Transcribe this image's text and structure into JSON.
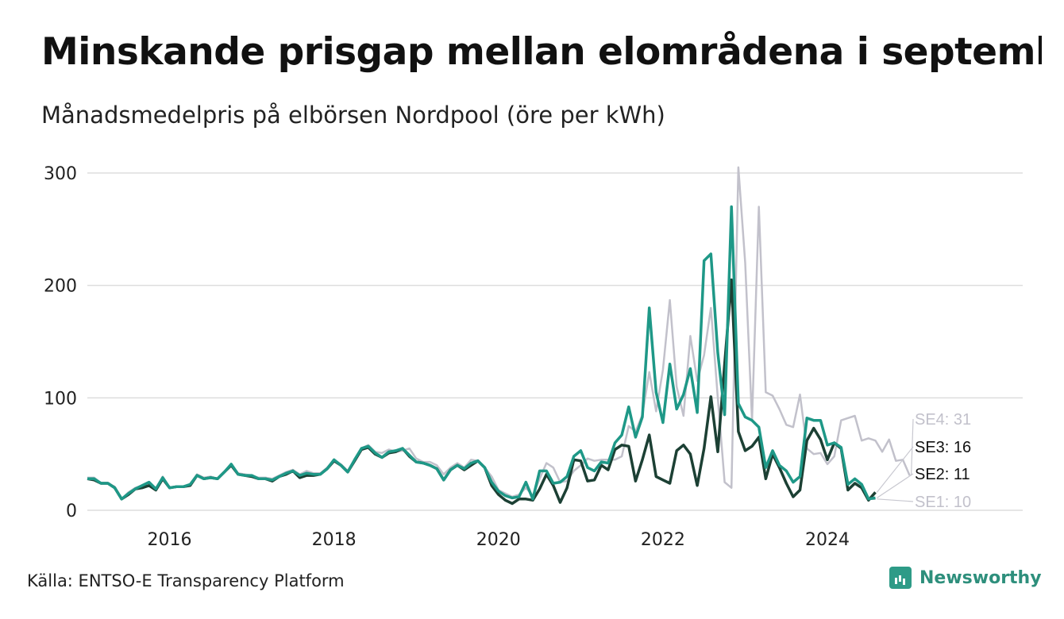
{
  "header": {
    "title": "Minskande prisgap mellan elområdena i  september",
    "subtitle": "Månadsmedelpris på elbörsen Nordpool (öre per kWh)"
  },
  "footer": {
    "source": "Källa: ENTSO-E Transparency Platform",
    "brand": "Newsworthy"
  },
  "chart_data": {
    "type": "line",
    "title": "Minskande prisgap mellan elområdena i  september",
    "subtitle": "Månadsmedelpris på elbörsen Nordpool (öre per kWh)",
    "x_unit": "monthly, starting 2015-01",
    "x_ticks": [
      "2016",
      "2018",
      "2020",
      "2022",
      "2024"
    ],
    "y_ticks": [
      0,
      100,
      200,
      300
    ],
    "ylim": [
      0,
      300
    ],
    "grid": true,
    "legend": "end-labels",
    "colors": {
      "SE4": "#c2c1cb",
      "SE3": "#1c4034",
      "SE2": "#1e9887",
      "SE1": "#c2c1cb"
    },
    "end_labels": [
      "SE4: 31",
      "SE3: 16",
      "SE2: 11",
      "SE1: 10"
    ],
    "series": [
      {
        "name": "SE4",
        "values": [
          29,
          29,
          24,
          24,
          21,
          10,
          16,
          20,
          22,
          25,
          19,
          30,
          20,
          21,
          21,
          23,
          32,
          29,
          30,
          28,
          34,
          41,
          33,
          32,
          31,
          29,
          29,
          28,
          31,
          34,
          36,
          32,
          35,
          33,
          33,
          38,
          45,
          41,
          35,
          45,
          55,
          58,
          52,
          51,
          54,
          52,
          53,
          55,
          46,
          43,
          43,
          40,
          32,
          38,
          42,
          38,
          45,
          44,
          38,
          30,
          18,
          15,
          12,
          14,
          20,
          13,
          28,
          42,
          38,
          25,
          26,
          35,
          40,
          46,
          44,
          45,
          45,
          45,
          48,
          75,
          70,
          85,
          123,
          88,
          125,
          187,
          110,
          84,
          155,
          115,
          138,
          180,
          100,
          25,
          20,
          305,
          220,
          80,
          270,
          105,
          102,
          90,
          76,
          74,
          103,
          55,
          50,
          51,
          41,
          48,
          80,
          82,
          84,
          62,
          64,
          62,
          52,
          63,
          44,
          45,
          31
        ]
      },
      {
        "name": "SE3",
        "values": [
          28,
          27,
          24,
          24,
          20,
          10,
          14,
          19,
          20,
          22,
          18,
          28,
          20,
          21,
          21,
          22,
          31,
          28,
          29,
          28,
          34,
          40,
          32,
          31,
          30,
          28,
          28,
          26,
          30,
          32,
          35,
          29,
          31,
          31,
          32,
          37,
          44,
          40,
          34,
          44,
          54,
          56,
          50,
          47,
          51,
          52,
          55,
          48,
          43,
          42,
          40,
          37,
          27,
          36,
          40,
          36,
          40,
          44,
          38,
          22,
          14,
          9,
          6,
          10,
          10,
          9,
          19,
          32,
          22,
          7,
          20,
          45,
          44,
          26,
          27,
          40,
          36,
          54,
          58,
          57,
          26,
          45,
          67,
          30,
          27,
          24,
          53,
          58,
          50,
          22,
          55,
          101,
          52,
          130,
          205,
          70,
          53,
          57,
          65,
          28,
          50,
          38,
          24,
          12,
          18,
          62,
          73,
          63,
          45,
          60,
          55,
          18,
          24,
          20,
          9,
          16
        ]
      },
      {
        "name": "SE2",
        "values": [
          28,
          28,
          24,
          24,
          20,
          10,
          15,
          19,
          22,
          25,
          19,
          29,
          20,
          21,
          21,
          23,
          31,
          28,
          29,
          28,
          34,
          41,
          32,
          31,
          31,
          28,
          28,
          27,
          30,
          33,
          35,
          31,
          33,
          32,
          32,
          37,
          45,
          40,
          34,
          45,
          55,
          57,
          51,
          47,
          52,
          53,
          55,
          49,
          43,
          42,
          40,
          37,
          27,
          36,
          40,
          37,
          42,
          44,
          38,
          25,
          17,
          13,
          11,
          12,
          25,
          10,
          35,
          35,
          24,
          25,
          30,
          48,
          53,
          38,
          35,
          43,
          42,
          60,
          67,
          92,
          65,
          83,
          180,
          105,
          78,
          130,
          90,
          103,
          126,
          87,
          222,
          228,
          140,
          85,
          270,
          95,
          83,
          80,
          74,
          38,
          53,
          40,
          35,
          25,
          30,
          82,
          80,
          80,
          58,
          60,
          56,
          23,
          28,
          23,
          10,
          11
        ]
      },
      {
        "name": "SE1",
        "values": [
          28,
          28,
          24,
          24,
          20,
          10,
          15,
          19,
          22,
          25,
          19,
          29,
          20,
          21,
          21,
          23,
          31,
          28,
          29,
          28,
          34,
          41,
          32,
          31,
          31,
          28,
          28,
          27,
          30,
          33,
          35,
          31,
          33,
          32,
          32,
          37,
          45,
          40,
          34,
          45,
          55,
          57,
          51,
          47,
          52,
          53,
          55,
          49,
          43,
          42,
          40,
          37,
          27,
          36,
          40,
          37,
          42,
          44,
          38,
          25,
          17,
          13,
          11,
          12,
          25,
          10,
          35,
          35,
          24,
          25,
          30,
          48,
          53,
          38,
          35,
          43,
          42,
          60,
          67,
          92,
          65,
          83,
          180,
          105,
          78,
          130,
          90,
          103,
          126,
          87,
          222,
          228,
          140,
          85,
          270,
          95,
          83,
          80,
          74,
          38,
          53,
          40,
          35,
          25,
          30,
          82,
          80,
          80,
          58,
          60,
          56,
          23,
          28,
          23,
          10,
          10
        ]
      }
    ]
  }
}
